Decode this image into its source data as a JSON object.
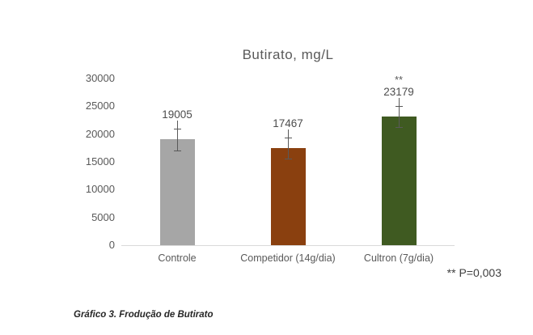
{
  "chart_data": {
    "type": "bar",
    "title": "Butirato, mg/L",
    "categories": [
      "Controle",
      "Competidor (14g/dia)",
      "Cultron (7g/dia)"
    ],
    "values": [
      19005,
      17467,
      23179
    ],
    "data_labels": [
      "19005",
      "17467",
      "23179"
    ],
    "error_bars": [
      1950,
      1950,
      1850
    ],
    "bar_colors": [
      "#A6A6A6",
      "#8A400F",
      "#3F5A21"
    ],
    "significance": {
      "category_index": 2,
      "marker": "**"
    },
    "xlabel": "",
    "ylabel": "",
    "ylim": [
      0,
      30000
    ],
    "yticks": [
      0,
      5000,
      10000,
      15000,
      20000,
      25000,
      30000
    ],
    "grid": false,
    "legend": "none"
  },
  "annotation": {
    "text": "** P=0,003"
  },
  "caption": {
    "text": "Gráfico 3. Frodução de Butirato"
  },
  "colors": {
    "axis_line": "#D9D9D9",
    "tick_text": "#595959",
    "error_bar": "#595959",
    "bar_gray": "#A6A6A6",
    "bar_brown": "#8A400F",
    "bar_green": "#3F5A21"
  }
}
